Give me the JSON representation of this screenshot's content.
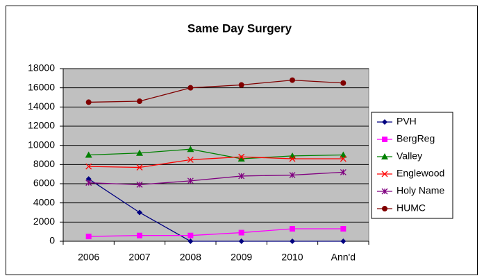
{
  "chart_data": {
    "type": "line",
    "title": "Same Day Surgery",
    "categories": [
      "2006",
      "2007",
      "2008",
      "2009",
      "2010",
      "Ann'd"
    ],
    "series": [
      {
        "name": "PVH",
        "color": "#000080",
        "marker": "diamond",
        "values": [
          6500,
          3000,
          0,
          0,
          0,
          0
        ]
      },
      {
        "name": "BergReg",
        "color": "#ff00ff",
        "marker": "square",
        "values": [
          500,
          600,
          600,
          900,
          1300,
          1300
        ]
      },
      {
        "name": "Valley",
        "color": "#008000",
        "marker": "triangle",
        "values": [
          9000,
          9200,
          9600,
          8600,
          8900,
          9000
        ]
      },
      {
        "name": "Englewood",
        "color": "#ff0000",
        "marker": "x",
        "values": [
          7800,
          7700,
          8500,
          8800,
          8600,
          8600
        ]
      },
      {
        "name": "Holy Name",
        "color": "#800080",
        "marker": "star",
        "values": [
          6100,
          5900,
          6300,
          6800,
          6900,
          7200
        ]
      },
      {
        "name": "HUMC",
        "color": "#800000",
        "marker": "circle",
        "values": [
          14500,
          14600,
          16000,
          16300,
          16800,
          16500
        ]
      }
    ],
    "ylim": [
      0,
      18000
    ],
    "yticks": [
      0,
      2000,
      4000,
      6000,
      8000,
      10000,
      12000,
      14000,
      16000,
      18000
    ],
    "grid": true,
    "legend": "right",
    "plot_background": "#c0c0c0"
  }
}
